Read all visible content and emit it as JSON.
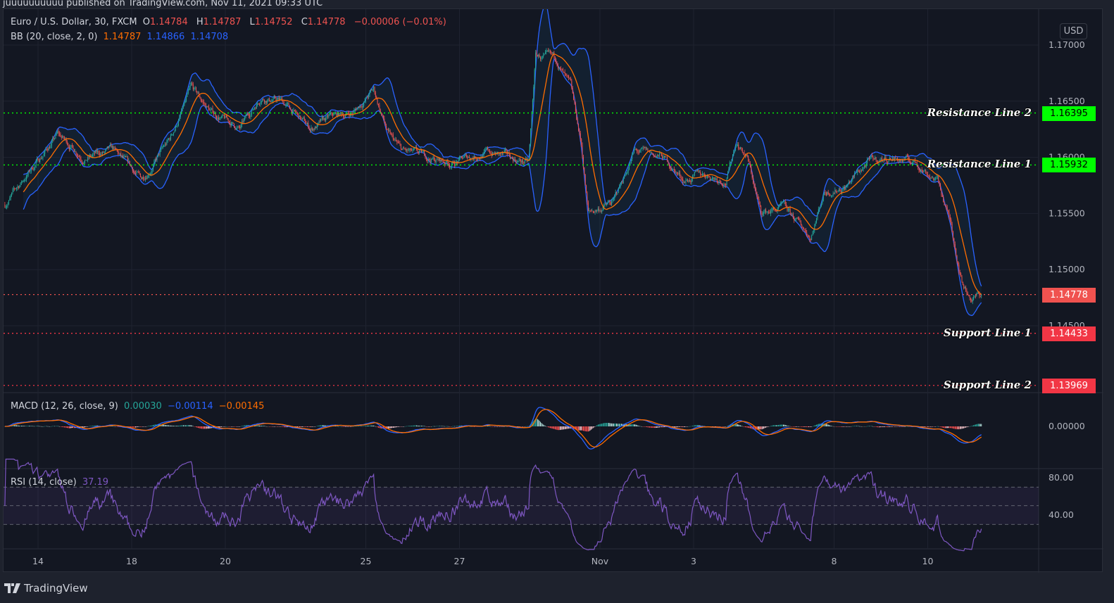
{
  "published_line": "juuuuuuuuuu published on TradingView.com, Nov 11, 2021 09:33 UTC",
  "brand": "TradingView",
  "currency_button": "USD",
  "legend": {
    "symbol": "Euro / U.S. Dollar, 30, FXCM",
    "o_label": "O",
    "o": "1.14784",
    "h_label": "H",
    "h": "1.14787",
    "l_label": "L",
    "l": "1.14752",
    "c_label": "C",
    "c": "1.14778",
    "change": "−0.00006 (−0.01%)",
    "bb_title": "BB (20, close, 2, 0)",
    "bb_basis": "1.14787",
    "bb_upper": "1.14866",
    "bb_lower": "1.14708",
    "macd_title": "MACD (12, 26, close, 9)",
    "macd_hist": "0.00030",
    "macd_line": "−0.00114",
    "macd_signal": "−0.00145",
    "rsi_title": "RSI (14, close)",
    "rsi_value": "37.19"
  },
  "price_lines": [
    {
      "label": "Resistance Line 2",
      "value": "1.16395",
      "color": "#00ff00",
      "text_color": "#000000"
    },
    {
      "label": "Resistance Line 1",
      "value": "1.15932",
      "color": "#00ff00",
      "text_color": "#000000"
    },
    {
      "label": "Support Line 1",
      "value": "1.14433",
      "color": "#f23645",
      "text_color": "#ffffff"
    },
    {
      "label": "Support Line 2",
      "value": "1.13969",
      "color": "#f23645",
      "text_color": "#ffffff"
    }
  ],
  "last_price": {
    "value": "1.14778",
    "color": "#f0524f"
  },
  "colors": {
    "up": "#26a69a",
    "down": "#ef5350",
    "bb_basis": "#ff6d00",
    "bb_band": "#2962ff",
    "macd": "#2962ff",
    "signal": "#ff6d00",
    "rsi": "#7e57c2",
    "background": "#131722"
  },
  "chart_data": {
    "type": "candlestick",
    "interval": "30",
    "price_axis": {
      "ticks": [
        "1.17000",
        "1.16500",
        "1.16000",
        "1.15500",
        "1.15000",
        "1.14500"
      ],
      "range": [
        1.137,
        1.173
      ]
    },
    "macd_axis": {
      "ticks": [
        "0.00000"
      ]
    },
    "rsi_axis": {
      "ticks": [
        "80.00",
        "40.00"
      ],
      "bands": [
        30,
        50,
        70
      ]
    },
    "time_axis": {
      "ticks": [
        "14",
        "18",
        "20",
        "25",
        "27",
        "Nov",
        "3",
        "8",
        "10"
      ],
      "tick_dates": [
        "Oct 14",
        "Oct 18",
        "Oct 20",
        "Oct 25",
        "Oct 27",
        "Nov 01",
        "Nov 03",
        "Nov 08",
        "Nov 10"
      ]
    },
    "trading_days": [
      "Oct 13",
      "Oct 14",
      "Oct 15",
      "Oct 18",
      "Oct 19",
      "Oct 20",
      "Oct 21",
      "Oct 22",
      "Oct 25",
      "Oct 26",
      "Oct 27",
      "Oct 28",
      "Oct 29",
      "Nov 01",
      "Nov 02",
      "Nov 03",
      "Nov 04",
      "Nov 05",
      "Nov 08",
      "Nov 09",
      "Nov 10",
      "Nov 11"
    ],
    "approx_close_path": [
      [
        "Oct 13 07:00",
        1.1558
      ],
      [
        "Oct 13 23:00",
        1.1595
      ],
      [
        "Oct 14 10:00",
        1.162
      ],
      [
        "Oct 15 00:00",
        1.16
      ],
      [
        "Oct 15 14:30",
        1.1605
      ],
      [
        "Oct 18 05:00",
        1.158
      ],
      [
        "Oct 18 19:30",
        1.1615
      ],
      [
        "Oct 19 06:30",
        1.166
      ],
      [
        "Oct 19 17:00",
        1.164
      ],
      [
        "Oct 20 07:30",
        1.1625
      ],
      [
        "Oct 20 18:30",
        1.1655
      ],
      [
        "Oct 21 05:00",
        1.165
      ],
      [
        "Oct 21 19:30",
        1.1625
      ],
      [
        "Oct 22 06:30",
        1.1635
      ],
      [
        "Oct 22 17:30",
        1.164
      ],
      [
        "Oct 25 04:00",
        1.166
      ],
      [
        "Oct 25 11:30",
        1.162
      ],
      [
        "Oct 25 18:30",
        1.1605
      ],
      [
        "Oct 26 05:30",
        1.16
      ],
      [
        "Oct 26 20:00",
        1.1595
      ],
      [
        "Oct 27 14:00",
        1.1605
      ],
      [
        "Oct 28 00:30",
        1.16
      ],
      [
        "Oct 28 11:30",
        1.1595
      ],
      [
        "Oct 28 15:00",
        1.169
      ],
      [
        "Oct 29 02:00",
        1.1685
      ],
      [
        "Oct 29 09:00",
        1.166
      ],
      [
        "Oct 29 14:30",
        1.161
      ],
      [
        "Oct 29 18:00",
        1.155
      ],
      [
        "Nov 01 07:00",
        1.156
      ],
      [
        "Nov 01 17:30",
        1.1605
      ],
      [
        "Nov 02 08:00",
        1.16
      ],
      [
        "Nov 02 19:00",
        1.158
      ],
      [
        "Nov 03 06:00",
        1.1585
      ],
      [
        "Nov 03 16:30",
        1.158
      ],
      [
        "Nov 03 22:00",
        1.1615
      ],
      [
        "Nov 04 03:30",
        1.16
      ],
      [
        "Nov 04 10:30",
        1.155
      ],
      [
        "Nov 04 21:30",
        1.1555
      ],
      [
        "Nov 05 12:00",
        1.153
      ],
      [
        "Nov 05 19:00",
        1.157
      ],
      [
        "Nov 08 06:00",
        1.1575
      ],
      [
        "Nov 08 17:00",
        1.1595
      ],
      [
        "Nov 09 05:30",
        1.16
      ],
      [
        "Nov 09 18:00",
        1.1595
      ],
      [
        "Nov 10 05:00",
        1.158
      ],
      [
        "Nov 10 12:00",
        1.154
      ],
      [
        "Nov 10 17:30",
        1.149
      ],
      [
        "Nov 10 22:30",
        1.1475
      ],
      [
        "Nov 11 03:30",
        1.14778
      ]
    ]
  }
}
